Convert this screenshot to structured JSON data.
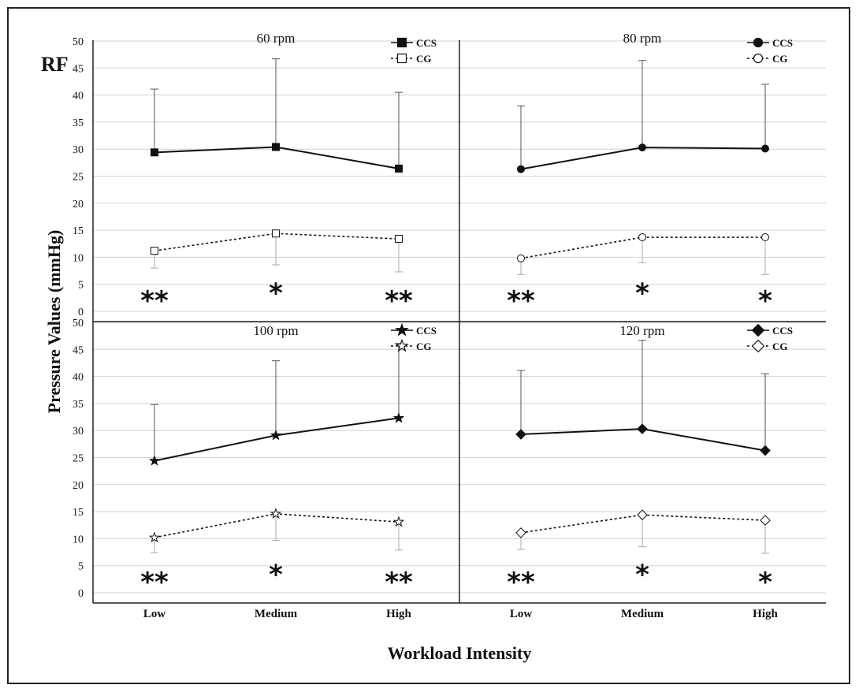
{
  "figure": {
    "tag": "RF",
    "ylabel": "Pressure Values (mmHg)",
    "xlabel": "Workload Intensity"
  },
  "chart_data": [
    {
      "type": "line",
      "title": "60 rpm",
      "categories": [
        "Low",
        "Medium",
        "High"
      ],
      "ylim": [
        0,
        50
      ],
      "yticks": [
        0,
        5,
        10,
        15,
        20,
        25,
        30,
        35,
        40,
        45,
        50
      ],
      "grid": true,
      "legend": "top-right",
      "series": [
        {
          "name": "CCS",
          "values": [
            29.4,
            30.4,
            26.4
          ],
          "err_up": [
            41.1,
            46.7,
            40.5
          ],
          "marker": "square",
          "filled": true,
          "dashed": false
        },
        {
          "name": "CG",
          "values": [
            11.2,
            14.4,
            13.4
          ],
          "err_down": [
            8.0,
            8.6,
            7.3
          ],
          "marker": "square",
          "filled": false,
          "dashed": true
        }
      ],
      "annotations": [
        "**",
        "*",
        "**"
      ]
    },
    {
      "type": "line",
      "title": "80 rpm",
      "categories": [
        "Low",
        "Medium",
        "High"
      ],
      "ylim": [
        0,
        50
      ],
      "yticks": [
        0,
        5,
        10,
        15,
        20,
        25,
        30,
        35,
        40,
        45,
        50
      ],
      "grid": true,
      "legend": "top-right",
      "series": [
        {
          "name": "CCS",
          "values": [
            26.3,
            30.3,
            30.1
          ],
          "err_up": [
            38.0,
            46.4,
            42.0
          ],
          "marker": "circle",
          "filled": true,
          "dashed": false
        },
        {
          "name": "CG",
          "values": [
            9.8,
            13.7,
            13.7
          ],
          "err_down": [
            6.8,
            9.0,
            6.8
          ],
          "marker": "circle",
          "filled": false,
          "dashed": true
        }
      ],
      "annotations": [
        "**",
        "*",
        "*"
      ]
    },
    {
      "type": "line",
      "title": "100 rpm",
      "categories": [
        "Low",
        "Medium",
        "High"
      ],
      "ylim": [
        0,
        50
      ],
      "yticks": [
        0,
        5,
        10,
        15,
        20,
        25,
        30,
        35,
        40,
        45,
        50
      ],
      "grid": true,
      "legend": "top-right",
      "series": [
        {
          "name": "CCS",
          "values": [
            24.4,
            29.1,
            32.3
          ],
          "err_up": [
            34.8,
            42.9,
            46.1
          ],
          "marker": "star",
          "filled": true,
          "dashed": false
        },
        {
          "name": "CG",
          "values": [
            10.2,
            14.6,
            13.1
          ],
          "err_down": [
            7.4,
            9.7,
            7.9
          ],
          "marker": "star",
          "filled": false,
          "dashed": true
        }
      ],
      "annotations": [
        "**",
        "*",
        "**"
      ]
    },
    {
      "type": "line",
      "title": "120 rpm",
      "categories": [
        "Low",
        "Medium",
        "High"
      ],
      "ylim": [
        0,
        50
      ],
      "yticks": [
        0,
        5,
        10,
        15,
        20,
        25,
        30,
        35,
        40,
        45,
        50
      ],
      "grid": true,
      "legend": "top-right",
      "series": [
        {
          "name": "CCS",
          "values": [
            29.3,
            30.3,
            26.3
          ],
          "err_up": [
            41.1,
            46.7,
            40.5
          ],
          "marker": "diamond",
          "filled": true,
          "dashed": false
        },
        {
          "name": "CG",
          "values": [
            11.1,
            14.4,
            13.4
          ],
          "err_down": [
            8.0,
            8.5,
            7.3
          ],
          "marker": "diamond",
          "filled": false,
          "dashed": true
        }
      ],
      "annotations": [
        "**",
        "*",
        "*"
      ]
    }
  ]
}
